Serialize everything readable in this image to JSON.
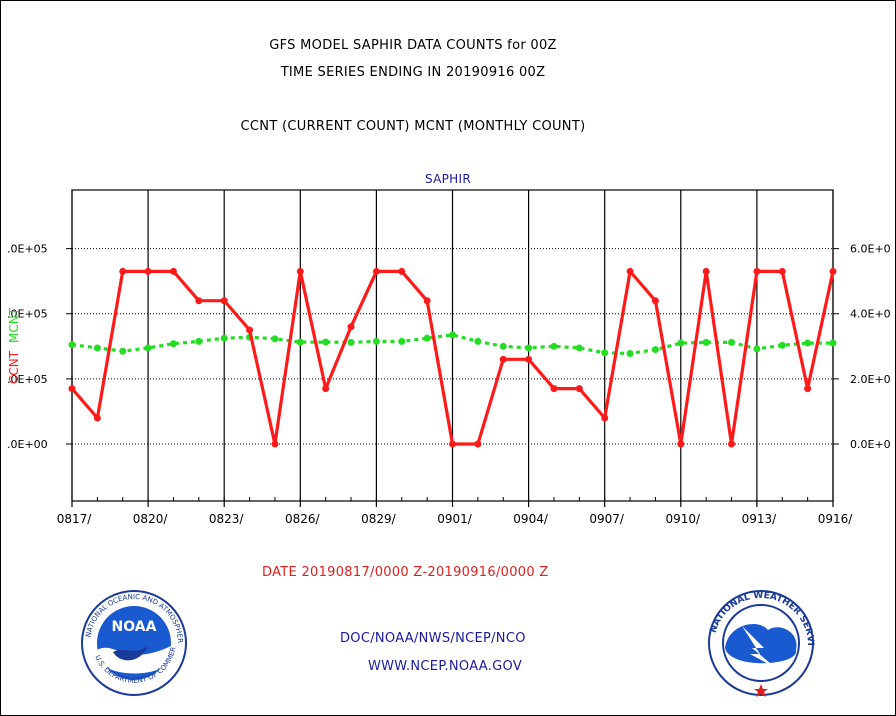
{
  "titles": {
    "line1": "GFS MODEL SAPHIR DATA COUNTS for 00Z",
    "line2": "TIME SERIES ENDING IN 20190916 00Z",
    "line3": "CCNT (CURRENT COUNT) MCNT (MONTHLY COUNT)"
  },
  "plot_label": "SAPHIR",
  "date_range": "DATE 20190817/0000 Z-20190916/0000 Z",
  "credits": {
    "line1": "DOC/NOAA/NWS/NCEP/NCO",
    "line2": "WWW.NCEP.NOAA.GOV"
  },
  "logos": {
    "left": {
      "icon": "noaa-logo",
      "text": "NOAA"
    },
    "right": {
      "icon": "national-weather-service-logo"
    }
  },
  "colors": {
    "ccnt": "#ff1a1a",
    "mcnt": "#22dd22",
    "grid": "#000000",
    "label_blue": "#1a1aa0"
  },
  "chart_data": {
    "type": "line",
    "title": "SAPHIR",
    "x": [
      "0817",
      "0818",
      "0819",
      "0820",
      "0821",
      "0822",
      "0823",
      "0824",
      "0825",
      "0826",
      "0827",
      "0828",
      "0829",
      "0830",
      "0831",
      "0901",
      "0902",
      "0903",
      "0904",
      "0905",
      "0906",
      "0907",
      "0908",
      "0909",
      "0910",
      "0911",
      "0912",
      "0913",
      "0914",
      "0915",
      "0916"
    ],
    "x_tick_labels": [
      "0817/",
      "0820/",
      "0823/",
      "0826/",
      "0829/",
      "0901/",
      "0904/",
      "0907/",
      "0910/",
      "0913/",
      "0916/"
    ],
    "x_tick_indices": [
      0,
      3,
      6,
      9,
      12,
      15,
      18,
      21,
      24,
      27,
      30
    ],
    "left_axis": {
      "label": "CCNT",
      "ticks": [
        0,
        200000,
        400000,
        600000
      ],
      "tick_labels": [
        ".0E+00",
        ".0E+05",
        ".0E+05",
        ".0E+05"
      ],
      "ylim": [
        -175000,
        780000
      ]
    },
    "right_axis": {
      "label": "MCNT",
      "ticks": [
        0,
        200000,
        400000,
        600000
      ],
      "tick_labels": [
        "0.0E+0",
        "2.0E+0",
        "4.0E+0",
        "6.0E+0"
      ]
    },
    "grid": true,
    "series": [
      {
        "name": "CCNT",
        "style": "solid",
        "values": [
          170000,
          80000,
          530000,
          530000,
          530000,
          440000,
          440000,
          350000,
          0,
          530000,
          170000,
          360000,
          530000,
          530000,
          440000,
          0,
          0,
          260000,
          260000,
          170000,
          170000,
          80000,
          530000,
          440000,
          0,
          530000,
          0,
          530000,
          530000,
          170000,
          530000
        ]
      },
      {
        "name": "MCNT",
        "style": "dotted",
        "values": [
          305000,
          295000,
          285000,
          295000,
          308000,
          315000,
          325000,
          328000,
          323000,
          313000,
          313000,
          312000,
          315000,
          315000,
          325000,
          335000,
          315000,
          300000,
          295000,
          300000,
          295000,
          280000,
          278000,
          290000,
          310000,
          312000,
          312000,
          292000,
          303000,
          310000,
          310000
        ]
      }
    ]
  }
}
